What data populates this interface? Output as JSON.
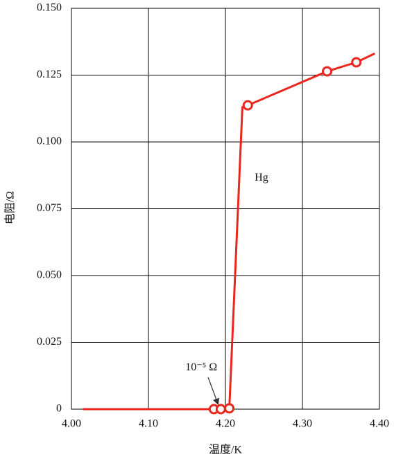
{
  "chart_data": {
    "type": "line",
    "x_label": "温度/K",
    "y_label": "电阻/Ω",
    "xlim": [
      4.0,
      4.4
    ],
    "ylim": [
      0,
      0.15
    ],
    "xticks": [
      {
        "value": 4.0,
        "label": "4.00"
      },
      {
        "value": 4.1,
        "label": "4.10"
      },
      {
        "value": 4.2,
        "label": "4.20"
      },
      {
        "value": 4.3,
        "label": "4.30"
      },
      {
        "value": 4.4,
        "label": "4.40"
      }
    ],
    "yticks": [
      0,
      0.025,
      {
        "value": 0.05,
        "label": "0.050"
      },
      0.075,
      {
        "value": 0.1,
        "label": "0.100"
      },
      0.125,
      {
        "value": 0.15,
        "label": "0.150"
      }
    ],
    "grid": true,
    "series": [
      {
        "color": "#e8281e",
        "marker": false,
        "x": [
          4.015,
          4.185,
          4.194,
          4.205,
          4.222,
          4.229,
          4.332,
          4.37,
          4.394
        ],
        "values": [
          0,
          0,
          0,
          0,
          0.113,
          0.1137,
          0.1264,
          0.1298,
          0.1331
        ]
      },
      {
        "color": "#e8281e",
        "marker": true,
        "x": [
          4.185,
          4.194,
          4.205,
          4.229,
          4.332,
          4.37
        ],
        "values": [
          0,
          0,
          0.0003,
          0.1137,
          0.1264,
          0.1298
        ]
      }
    ],
    "annotations": [
      {
        "text": "Hg",
        "x": 4.238,
        "y": 0.0865
      },
      {
        "text": "10⁻⁵ Ω",
        "x": 4.148,
        "y": 0.0155
      }
    ]
  }
}
